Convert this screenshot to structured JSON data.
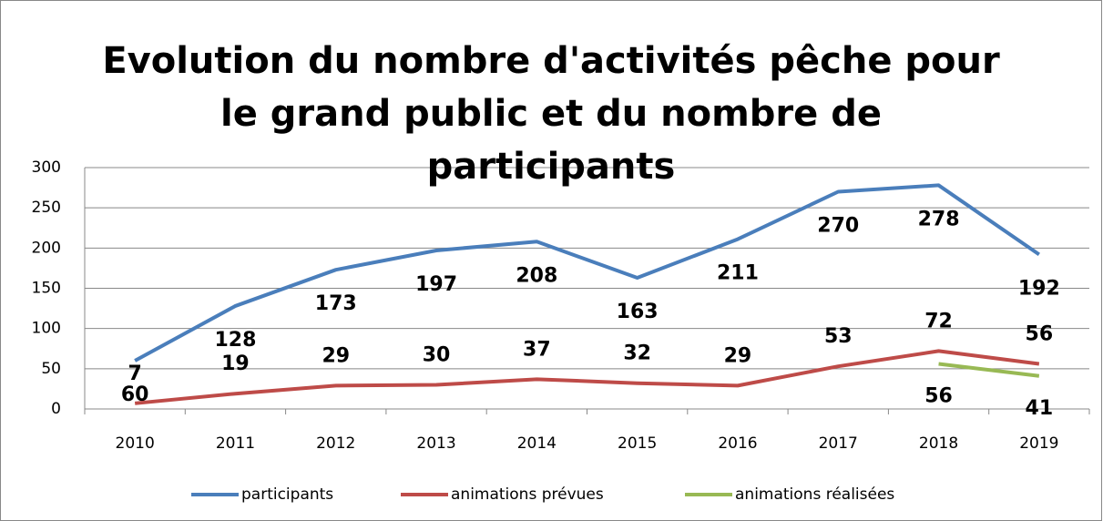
{
  "chart_data": {
    "type": "line",
    "title": "Evolution du nombre d'activités pêche pour le grand public et du nombre de participants",
    "categories": [
      "2010",
      "2011",
      "2012",
      "2013",
      "2014",
      "2015",
      "2016",
      "2017",
      "2018",
      "2019"
    ],
    "series": [
      {
        "name": "participants",
        "color": "#4a7ebb",
        "values": [
          60,
          128,
          173,
          197,
          208,
          163,
          211,
          270,
          278,
          192
        ]
      },
      {
        "name": "animations prévues",
        "color": "#be4b48",
        "values": [
          7,
          19,
          29,
          30,
          37,
          32,
          29,
          53,
          72,
          56
        ]
      },
      {
        "name": "animations réalisées",
        "color": "#98b954",
        "values": [
          null,
          null,
          null,
          null,
          null,
          null,
          null,
          null,
          56,
          41
        ]
      }
    ],
    "ylim": [
      0,
      300
    ],
    "yticks": [
      0,
      50,
      100,
      150,
      200,
      250,
      300
    ],
    "grid": true,
    "legend": "bottom"
  }
}
